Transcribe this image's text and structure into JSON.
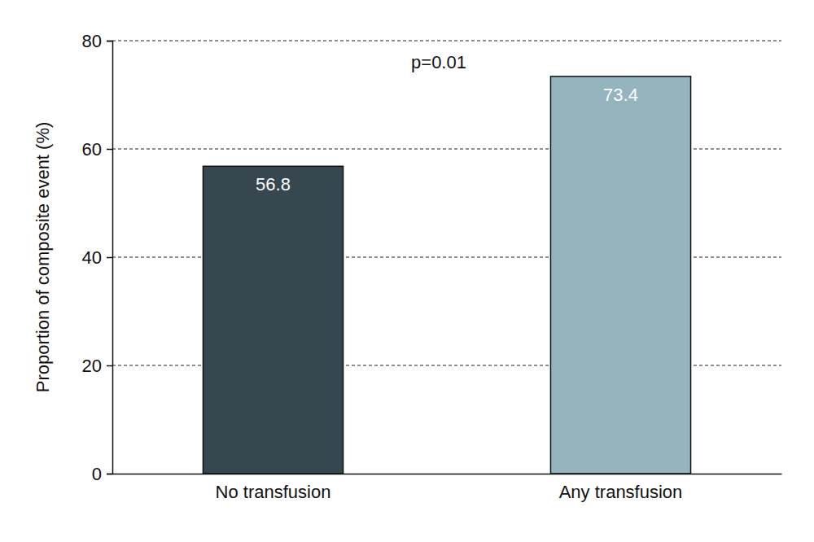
{
  "chart_data": {
    "type": "bar",
    "y_label": "Proportion of composite event (%)",
    "annotation": "p=0.01",
    "categories": [
      "No transfusion",
      "Any transfusion"
    ],
    "values": [
      56.8,
      73.4
    ],
    "colors": [
      "#37474f",
      "#94b4be"
    ],
    "ylim": [
      0,
      80
    ],
    "yticks": [
      0,
      20,
      40,
      60,
      80
    ],
    "grid": true,
    "data_labels": true
  }
}
